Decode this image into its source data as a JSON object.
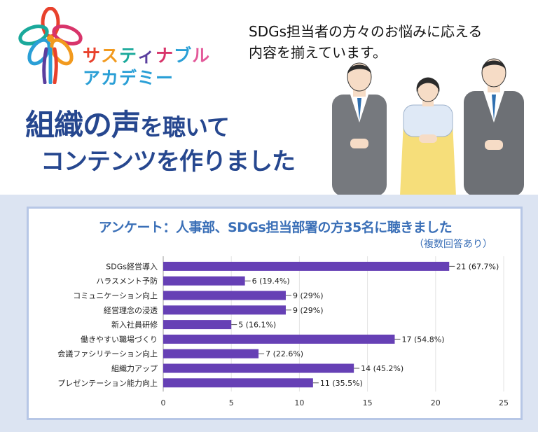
{
  "header": {
    "logo_line1": "サスティナブル",
    "logo_line1_colors": [
      "#e8412c",
      "#f29a1e",
      "#1aa99b",
      "#5a3e9e",
      "#d8346a",
      "#2a9fd6",
      "#e35a9a"
    ],
    "logo_line2": "アカデミー",
    "tagline_line1": "SDGs担当者の方々のお悩みに応える",
    "tagline_line2": "内容を揃えています。",
    "headline_part1": "組織の声",
    "headline_part2": "を聴いて",
    "headline_line2": "コンテンツを作りました"
  },
  "colors": {
    "headline": "#26478f",
    "chart_title": "#3a6fb7",
    "bar": "#6640b5",
    "panel_bg": "#dce4f2",
    "card_border": "#b7c7e6"
  },
  "chart_data": {
    "type": "bar",
    "orientation": "horizontal",
    "title": "アンケート：人事部、SDGs担当部署の方35名に聴きました",
    "subtitle": "（複数回答あり）",
    "categories": [
      "SDGs経営導入",
      "ハラスメント予防",
      "コミュニケーション向上",
      "経営理念の浸透",
      "新入社員研修",
      "働きやすい職場づくり",
      "会議ファシリテーション向上",
      "組織力アップ",
      "プレゼンテーション能力向上"
    ],
    "values": [
      21,
      6,
      9,
      9,
      5,
      17,
      7,
      14,
      11
    ],
    "data_labels": [
      "21 (67.7%)",
      "6 (19.4%)",
      "9 (29%)",
      "9 (29%)",
      "5 (16.1%)",
      "17 (54.8%)",
      "7 (22.6%)",
      "14 (45.2%)",
      "11 (35.5%)"
    ],
    "xlim": [
      0,
      25
    ],
    "xticks": [
      0,
      5,
      10,
      15,
      20,
      25
    ],
    "grid": true,
    "legend": "none"
  }
}
